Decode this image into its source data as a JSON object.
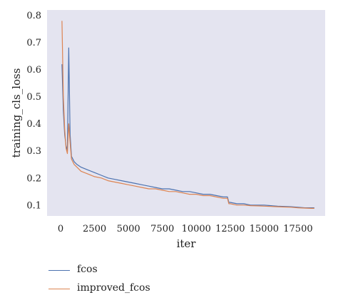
{
  "chart_data": {
    "type": "line",
    "xlabel": "iter",
    "ylabel": "training_cls_loss",
    "xlim": [
      -1000,
      19500
    ],
    "ylim": [
      0.06,
      0.82
    ],
    "xticks": [
      0,
      2500,
      5000,
      7500,
      10000,
      12500,
      15000,
      17500
    ],
    "xtick_labels": [
      "0",
      "2500",
      "5000",
      "7500",
      "10000",
      "12500",
      "15000",
      "17500"
    ],
    "yticks": [
      0.1,
      0.2,
      0.3,
      0.4,
      0.5,
      0.6,
      0.7,
      0.8
    ],
    "ytick_labels": [
      "0.1",
      "0.2",
      "0.3",
      "0.4",
      "0.5",
      "0.6",
      "0.7",
      "0.8"
    ],
    "grid": false,
    "plot_background": "#e4e4f0",
    "legend_position": "below",
    "series": [
      {
        "name": "fcos",
        "color": "#4c72b0",
        "x": [
          100,
          200,
          300,
          400,
          500,
          600,
          700,
          800,
          1000,
          1200,
          1500,
          2000,
          2500,
          3000,
          3500,
          4000,
          4500,
          5000,
          5500,
          6000,
          6500,
          7000,
          7500,
          8000,
          8500,
          9000,
          9500,
          10000,
          10500,
          11000,
          11500,
          12000,
          12300,
          12400,
          12500,
          13000,
          13500,
          14000,
          14500,
          15000,
          15500,
          16000,
          16500,
          17000,
          17500,
          18000,
          18500,
          18700
        ],
        "y": [
          0.62,
          0.45,
          0.36,
          0.32,
          0.3,
          0.68,
          0.36,
          0.28,
          0.26,
          0.25,
          0.24,
          0.23,
          0.22,
          0.21,
          0.2,
          0.195,
          0.19,
          0.185,
          0.18,
          0.175,
          0.17,
          0.165,
          0.16,
          0.16,
          0.155,
          0.15,
          0.15,
          0.145,
          0.14,
          0.14,
          0.135,
          0.13,
          0.13,
          0.11,
          0.11,
          0.105,
          0.105,
          0.1,
          0.1,
          0.1,
          0.098,
          0.096,
          0.095,
          0.094,
          0.092,
          0.09,
          0.09,
          0.09
        ]
      },
      {
        "name": "improved_fcos",
        "color": "#dd8452",
        "x": [
          100,
          200,
          300,
          400,
          500,
          600,
          700,
          800,
          1000,
          1200,
          1500,
          2000,
          2500,
          3000,
          3500,
          4000,
          4500,
          5000,
          5500,
          6000,
          6500,
          7000,
          7500,
          8000,
          8500,
          9000,
          9500,
          10000,
          10500,
          11000,
          11500,
          12000,
          12300,
          12400,
          12500,
          13000,
          13500,
          14000,
          14500,
          15000,
          15500,
          16000,
          16500,
          17000,
          17500,
          18000,
          18500,
          18700
        ],
        "y": [
          0.78,
          0.5,
          0.38,
          0.31,
          0.29,
          0.4,
          0.33,
          0.27,
          0.25,
          0.24,
          0.225,
          0.215,
          0.205,
          0.2,
          0.19,
          0.185,
          0.18,
          0.175,
          0.17,
          0.165,
          0.16,
          0.16,
          0.155,
          0.15,
          0.15,
          0.145,
          0.14,
          0.14,
          0.135,
          0.135,
          0.13,
          0.125,
          0.125,
          0.105,
          0.105,
          0.1,
          0.1,
          0.098,
          0.097,
          0.096,
          0.095,
          0.094,
          0.093,
          0.092,
          0.09,
          0.089,
          0.088,
          0.088
        ]
      }
    ]
  }
}
